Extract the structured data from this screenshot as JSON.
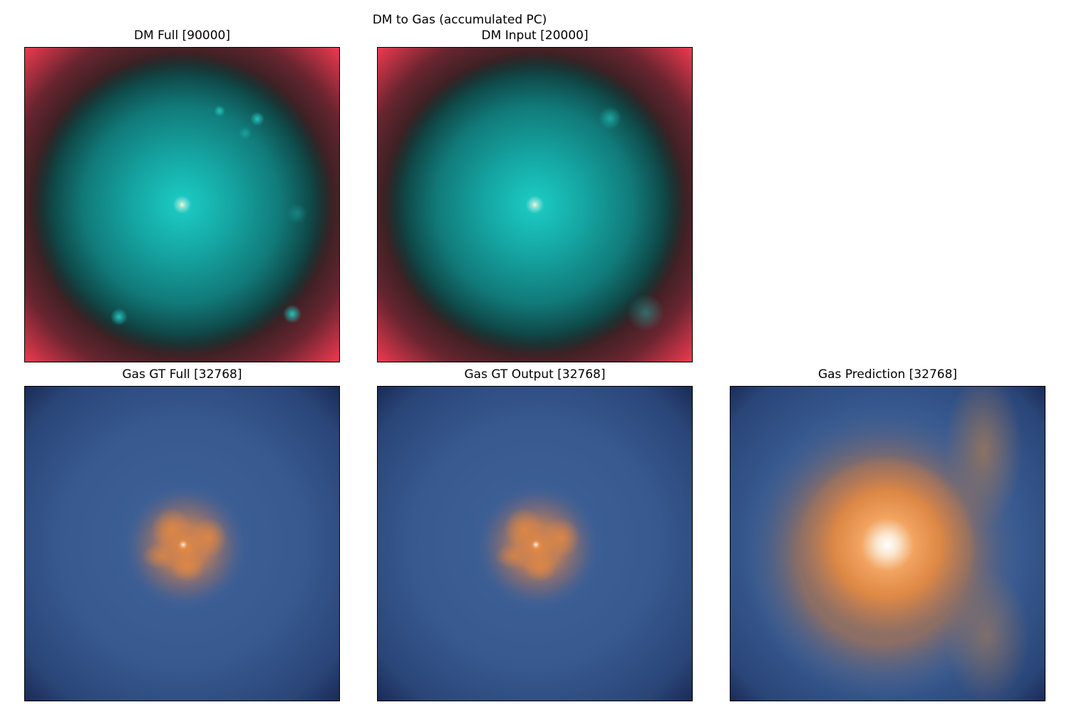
{
  "figure": {
    "suptitle": "DM to Gas (accumulated PC)"
  },
  "panels": [
    {
      "title": "DM Full [90000]",
      "colormap": "teal-red"
    },
    {
      "title": "DM Input [20000]",
      "colormap": "teal-red"
    },
    {
      "title": "Gas GT Full [32768]",
      "colormap": "blue-orange"
    },
    {
      "title": "Gas GT Output [32768]",
      "colormap": "blue-orange"
    },
    {
      "title": "Gas Prediction [32768]",
      "colormap": "blue-orange"
    }
  ],
  "colors": {
    "dm_core": "#fff6c0",
    "dm_inner": "#17c2bd",
    "dm_outer": "#0d3f40",
    "dm_edge": "#2a1f1f",
    "dm_corner": "#f23a50",
    "gas_bg": "#3b5d94",
    "gas_edge": "#1c2f5e",
    "gas_orange": "#e8883d",
    "gas_core": "#fff8ee"
  }
}
